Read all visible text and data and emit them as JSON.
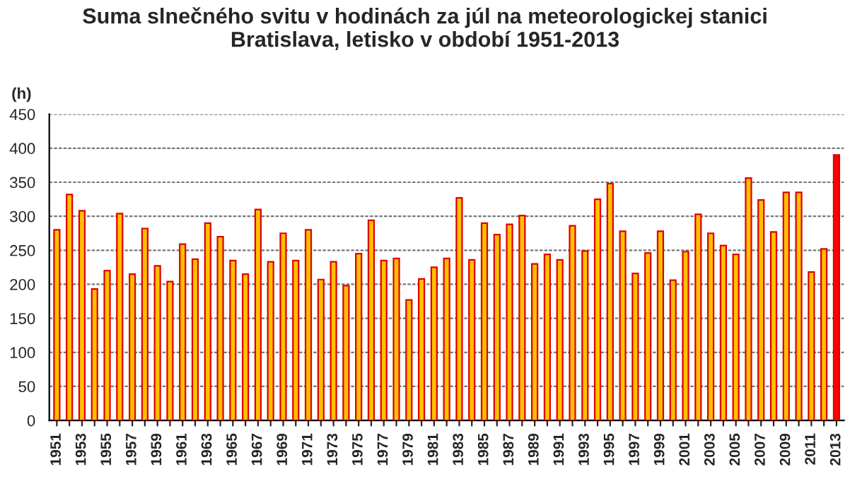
{
  "chart_data": {
    "type": "bar",
    "title": "Suma slnečného svitu v hodinách za júl na meteorologickej stanici\nBratislava, letisko v období 1951-2013",
    "ylabel": "(h)",
    "categories": [
      "1951",
      null,
      "1953",
      null,
      "1955",
      null,
      "1957",
      null,
      "1959",
      null,
      "1961",
      null,
      "1963",
      null,
      "1965",
      null,
      "1967",
      null,
      "1969",
      null,
      "1971",
      null,
      "1973",
      null,
      "1975",
      null,
      "1977",
      null,
      "1979",
      null,
      "1981",
      null,
      "1983",
      null,
      "1985",
      null,
      "1987",
      null,
      "1989",
      null,
      "1991",
      null,
      "1993",
      null,
      "1995",
      null,
      "1997",
      null,
      "1999",
      null,
      "2001",
      null,
      "2003",
      null,
      "2005",
      null,
      "2007",
      null,
      "2009",
      null,
      "2011",
      null,
      "2013"
    ],
    "values": [
      280,
      332,
      308,
      193,
      220,
      304,
      215,
      282,
      227,
      204,
      259,
      237,
      290,
      270,
      235,
      215,
      310,
      233,
      275,
      235,
      280,
      207,
      233,
      198,
      245,
      294,
      235,
      238,
      177,
      208,
      225,
      238,
      327,
      236,
      290,
      273,
      288,
      301,
      230,
      244,
      236,
      286,
      249,
      325,
      348,
      278,
      216,
      246,
      278,
      206,
      248,
      303,
      275,
      257,
      244,
      356,
      324,
      277,
      335,
      335,
      218,
      252,
      390
    ],
    "colors": [
      "#ffc000",
      "#ffc000",
      "#ffc000",
      "#ffc000",
      "#ffc000",
      "#ffc000",
      "#ffc000",
      "#ffc000",
      "#ffc000",
      "#ffc000",
      "#ffc000",
      "#ffc000",
      "#ffc000",
      "#ffc000",
      "#ffc000",
      "#ffc000",
      "#ffc000",
      "#ffc000",
      "#ffc000",
      "#ffc000",
      "#ffc000",
      "#ffc000",
      "#ffc000",
      "#ffc000",
      "#ffc000",
      "#ffc000",
      "#ffc000",
      "#ffc000",
      "#ffc000",
      "#ffc000",
      "#ffc000",
      "#ffc000",
      "#ffc000",
      "#ffc000",
      "#ffc000",
      "#ffc000",
      "#ffc000",
      "#ffc000",
      "#ffc000",
      "#ffc000",
      "#ffc000",
      "#ffc000",
      "#ffc000",
      "#ffc000",
      "#ffc000",
      "#ffc000",
      "#ffc000",
      "#ffc000",
      "#ffc000",
      "#ffc000",
      "#ffc000",
      "#ffc000",
      "#ffc000",
      "#ffc000",
      "#ffc000",
      "#ffc000",
      "#ffc000",
      "#ffc000",
      "#ffc000",
      "#ffc000",
      "#ffc000",
      "#ffc000",
      "#ff0000"
    ],
    "ylim": [
      0,
      450
    ],
    "yticks": [
      0,
      50,
      100,
      150,
      200,
      250,
      300,
      350,
      400,
      450
    ],
    "grid": "y"
  }
}
